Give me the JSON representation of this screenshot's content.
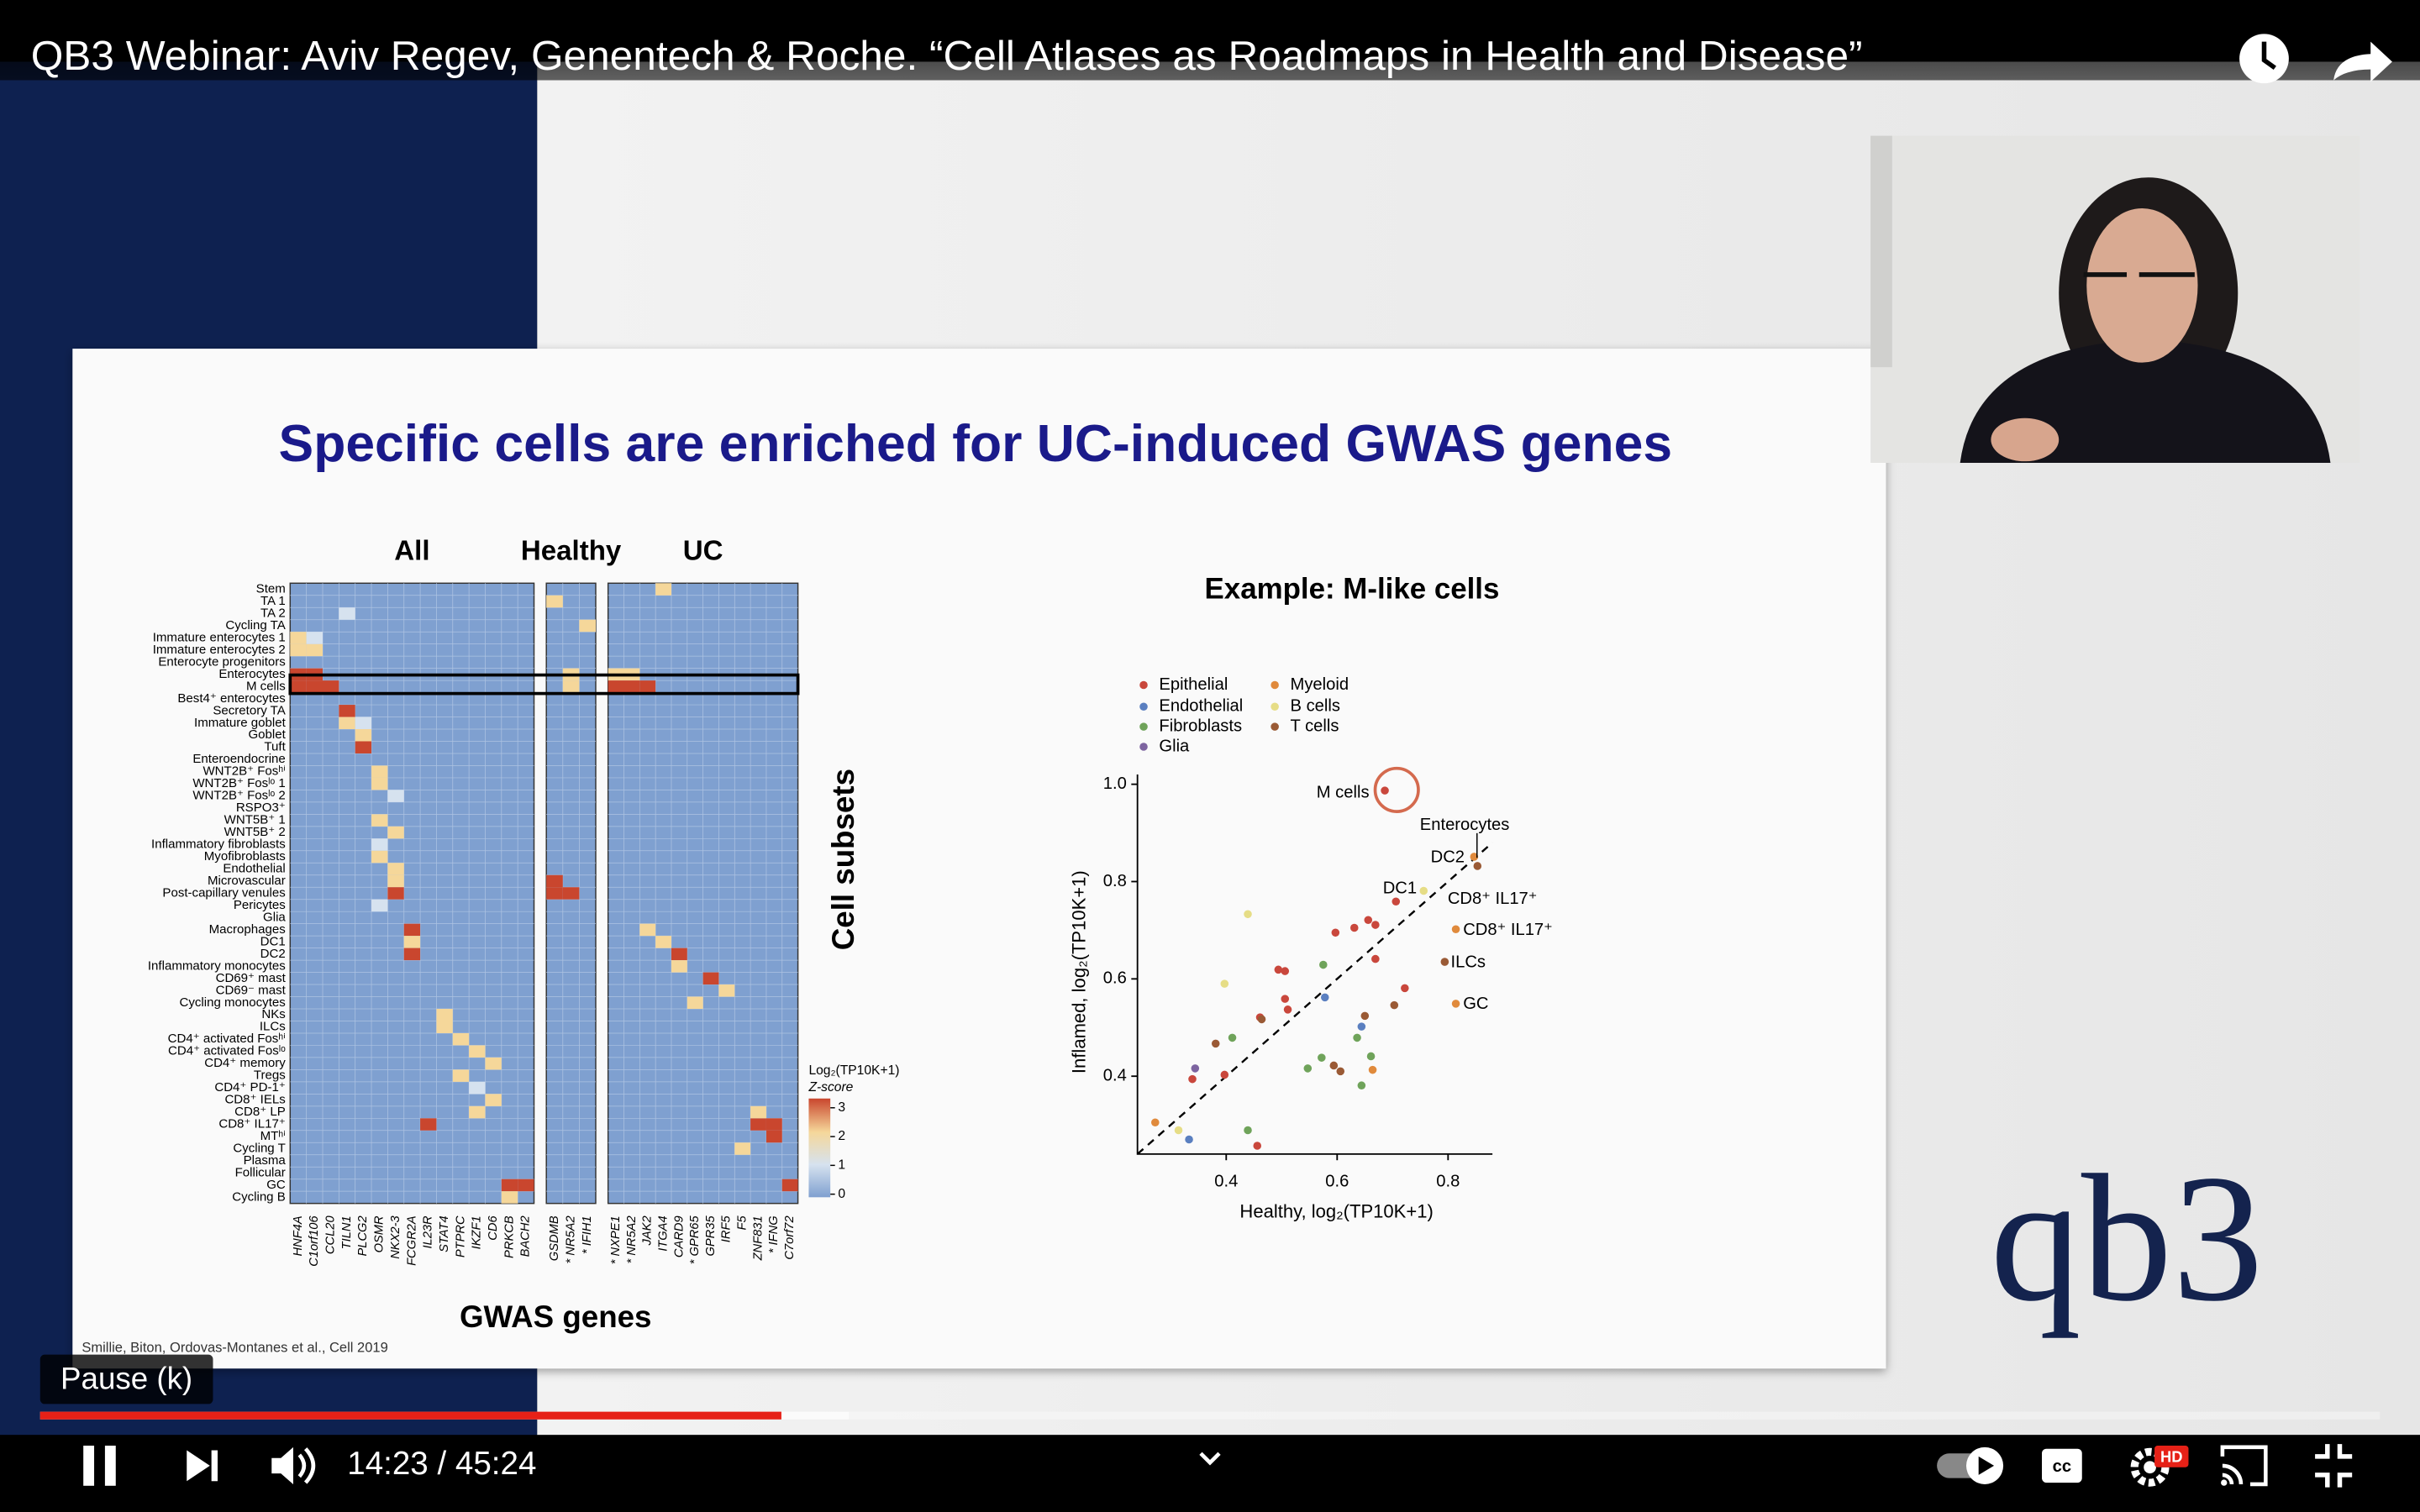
{
  "video": {
    "title": "QB3 Webinar: Aviv Regev, Genentech & Roche. “Cell Atlases as Roadmaps in Health and Disease”",
    "tooltip": "Pause (k)",
    "time": "14:23 / 45:24",
    "badge": "HD"
  },
  "slide": {
    "title": "Specific cells are enriched for UC-induced GWAS genes",
    "citation": "Smillie, Biton, Ordovas-Montanes et al., Cell 2019",
    "logo": "qb3"
  },
  "heatmap": {
    "panels": [
      "All",
      "Healthy",
      "UC"
    ],
    "genes": [
      [
        "HNF4A",
        "C1orf106",
        "CCL20",
        "TILN1",
        "PLCG2",
        "OSMR",
        "NKX2-3",
        "FCGR2A",
        "IL23R",
        "STAT4",
        "PTPRC",
        "IKZF1",
        "CD6",
        "PRKCB",
        "BACH2"
      ],
      [
        "GSDMB",
        "* NR5A2",
        "* IFIH1"
      ],
      [
        "* NXPE1",
        "* NR5A2",
        "JAK2",
        "ITGA4",
        "CARD9",
        "* GPR65",
        "GPR35",
        "IRF5",
        "F5",
        "ZNF831",
        "* IFNG",
        "C7orf72"
      ]
    ],
    "rows": [
      "Stem",
      "TA 1",
      "TA 2",
      "Cycling TA",
      "Immature enterocytes 1",
      "Immature enterocytes 2",
      "Enterocyte progenitors",
      "Enterocytes",
      "M cells",
      "Best4⁺ enterocytes",
      "Secretory TA",
      "Immature goblet",
      "Goblet",
      "Tuft",
      "Enteroendocrine",
      "WNT2B⁺ Fosʰⁱ",
      "WNT2B⁺ Fosˡᵒ 1",
      "WNT2B⁺ Fosˡᵒ 2",
      "RSPO3⁺",
      "WNT5B⁺ 1",
      "WNT5B⁺ 2",
      "Inflammatory fibroblasts",
      "Myofibroblasts",
      "Endothelial",
      "Microvascular",
      "Post-capillary venules",
      "Pericytes",
      "Glia",
      "Macrophages",
      "DC1",
      "DC2",
      "Inflammatory monocytes",
      "CD69⁺ mast",
      "CD69⁻ mast",
      "Cycling monocytes",
      "NKs",
      "ILCs",
      "CD4⁺ activated Fosʰⁱ",
      "CD4⁺ activated Fosˡᵒ",
      "CD4⁺ memory",
      "Tregs",
      "CD4⁺ PD-1⁺",
      "CD8⁺ IELs",
      "CD8⁺ LP",
      "CD8⁺ IL17⁺",
      "MTʰⁱ",
      "Cycling T",
      "Plasma",
      "Follicular",
      "GC",
      "Cycling B"
    ],
    "y_label": "Cell subsets",
    "x_label": "GWAS genes",
    "colorbar": {
      "title": "Log₂(TP10K+1)",
      "subtitle": "Z-score",
      "ticks": [
        0,
        1,
        2,
        3
      ]
    },
    "cells": [
      [
        7,
        0,
        3
      ],
      [
        7,
        1,
        3
      ],
      [
        7,
        16,
        2
      ],
      [
        7,
        18,
        2
      ],
      [
        7,
        19,
        2
      ],
      [
        8,
        0,
        3
      ],
      [
        8,
        1,
        3
      ],
      [
        8,
        2,
        3
      ],
      [
        8,
        16,
        2
      ],
      [
        8,
        18,
        3
      ],
      [
        8,
        19,
        3
      ],
      [
        8,
        20,
        3
      ],
      [
        4,
        0,
        2
      ],
      [
        5,
        0,
        2
      ],
      [
        5,
        1,
        2
      ],
      [
        4,
        1,
        1
      ],
      [
        2,
        3,
        1
      ],
      [
        10,
        3,
        3
      ],
      [
        11,
        3,
        2
      ],
      [
        11,
        4,
        1
      ],
      [
        12,
        4,
        2
      ],
      [
        13,
        4,
        3
      ],
      [
        15,
        5,
        2
      ],
      [
        16,
        5,
        2
      ],
      [
        17,
        6,
        1
      ],
      [
        19,
        5,
        2
      ],
      [
        20,
        6,
        2
      ],
      [
        21,
        5,
        1
      ],
      [
        22,
        5,
        2
      ],
      [
        23,
        6,
        2
      ],
      [
        24,
        6,
        2
      ],
      [
        25,
        6,
        3
      ],
      [
        24,
        15,
        3
      ],
      [
        25,
        15,
        3
      ],
      [
        25,
        16,
        3
      ],
      [
        26,
        5,
        1
      ],
      [
        28,
        7,
        3
      ],
      [
        29,
        7,
        2
      ],
      [
        30,
        7,
        3
      ],
      [
        28,
        20,
        2
      ],
      [
        29,
        21,
        2
      ],
      [
        30,
        22,
        3
      ],
      [
        31,
        22,
        2
      ],
      [
        32,
        24,
        3
      ],
      [
        33,
        25,
        2
      ],
      [
        34,
        23,
        2
      ],
      [
        35,
        9,
        2
      ],
      [
        36,
        9,
        2
      ],
      [
        37,
        10,
        2
      ],
      [
        38,
        11,
        2
      ],
      [
        39,
        12,
        2
      ],
      [
        40,
        10,
        2
      ],
      [
        41,
        11,
        1
      ],
      [
        42,
        12,
        2
      ],
      [
        43,
        11,
        2
      ],
      [
        44,
        8,
        3
      ],
      [
        44,
        27,
        3
      ],
      [
        44,
        28,
        3
      ],
      [
        43,
        27,
        2
      ],
      [
        45,
        28,
        3
      ],
      [
        46,
        26,
        2
      ],
      [
        49,
        13,
        3
      ],
      [
        49,
        14,
        3
      ],
      [
        50,
        13,
        2
      ],
      [
        49,
        29,
        3
      ],
      [
        1,
        15,
        2
      ],
      [
        3,
        17,
        2
      ],
      [
        0,
        21,
        2
      ]
    ]
  },
  "chart_data": {
    "type": "scatter",
    "title": "Example: M-like cells",
    "x_label": "Healthy, log₂(TP10K+1)",
    "y_label": "Inflamed, log₂(TP10K+1)",
    "xlim": [
      0.24,
      0.88
    ],
    "ylim": [
      0.24,
      1.02
    ],
    "xticks": [
      0.4,
      0.6,
      0.8
    ],
    "yticks": [
      0.4,
      0.6,
      0.8,
      {
        "value": 1,
        "label": "1.0"
      }
    ],
    "annotations": [
      "M cells",
      "Enterocytes",
      "DC2",
      "DC1",
      "CD8⁺ IL17⁺",
      "CD8⁺ IL17⁺",
      "ILCs",
      "GC"
    ],
    "series": [
      {
        "name": "Epithelial",
        "color": "#c9473c",
        "x": [
          0.686,
          0.597,
          0.631,
          0.656,
          0.669,
          0.706,
          0.494,
          0.506,
          0.506,
          0.511,
          0.461,
          0.397,
          0.339,
          0.456,
          0.722,
          0.669
        ],
        "values": [
          0.987,
          0.695,
          0.705,
          0.721,
          0.711,
          0.759,
          0.619,
          0.616,
          0.559,
          0.537,
          0.521,
          0.403,
          0.394,
          0.257,
          0.581,
          0.641
        ]
      },
      {
        "name": "Endothelial",
        "color": "#5a7fc0",
        "x": [
          0.333,
          0.578,
          0.644
        ],
        "values": [
          0.27,
          0.562,
          0.502
        ]
      },
      {
        "name": "Fibroblasts",
        "color": "#6fa35a",
        "x": [
          0.411,
          0.575,
          0.547,
          0.572,
          0.636,
          0.644,
          0.439,
          0.661
        ],
        "values": [
          0.479,
          0.629,
          0.416,
          0.438,
          0.479,
          0.381,
          0.289,
          0.441
        ]
      },
      {
        "name": "Glia",
        "color": "#7d64a0",
        "x": [
          0.344
        ],
        "values": [
          0.416
        ]
      },
      {
        "name": "Myeloid",
        "color": "#e08a3c",
        "x": [
          0.814,
          0.814,
          0.664,
          0.272,
          0.847
        ],
        "values": [
          0.702,
          0.549,
          0.413,
          0.305,
          0.851
        ]
      },
      {
        "name": "B cells",
        "color": "#e6dd86",
        "x": [
          0.439,
          0.397,
          0.756,
          0.314
        ],
        "values": [
          0.733,
          0.59,
          0.781,
          0.289
        ]
      },
      {
        "name": "T cells",
        "color": "#9a5a35",
        "x": [
          0.794,
          0.703,
          0.65,
          0.594,
          0.606,
          0.381,
          0.853,
          0.464
        ],
        "values": [
          0.635,
          0.546,
          0.524,
          0.422,
          0.41,
          0.467,
          0.832,
          0.517
        ]
      }
    ]
  }
}
